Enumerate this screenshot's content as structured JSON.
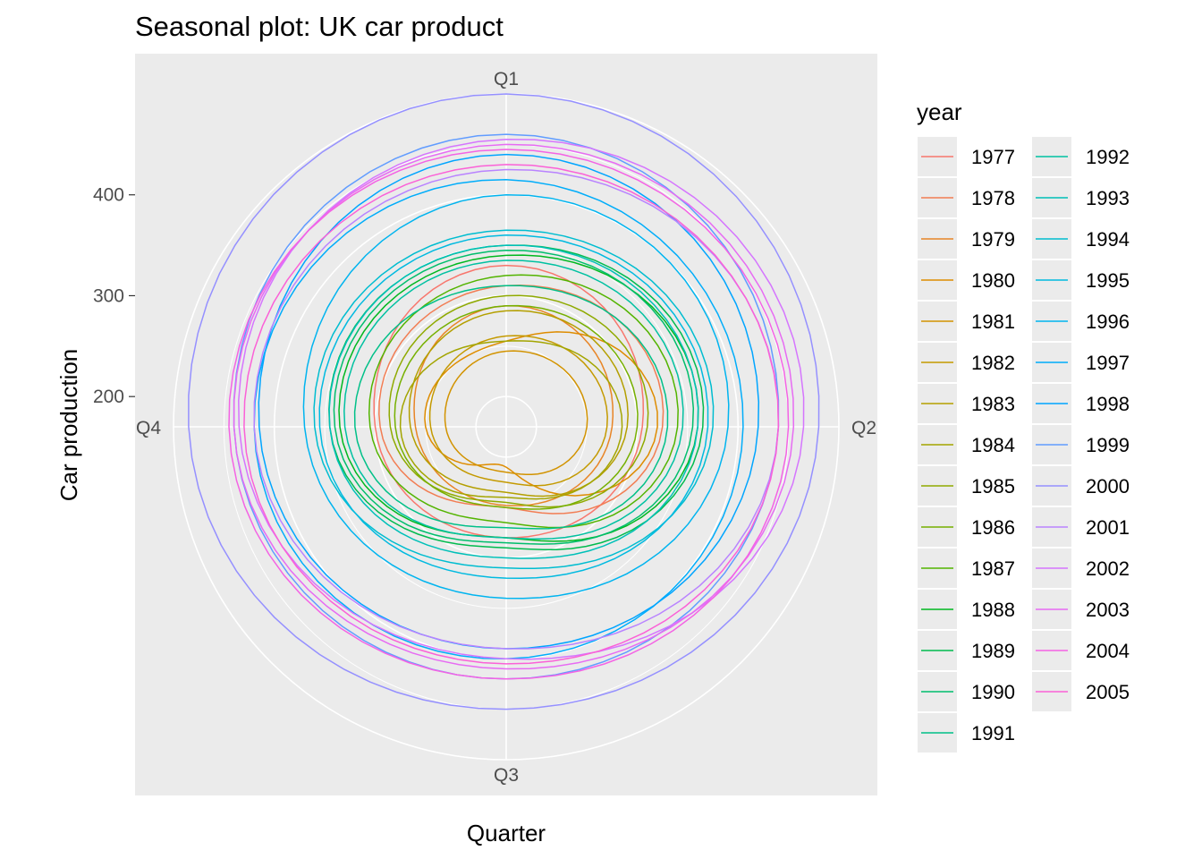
{
  "chart_data": {
    "type": "line",
    "coordinate_system": "polar",
    "title": "Seasonal plot: UK car product",
    "xlabel": "Quarter",
    "ylabel": "Car production",
    "categories": [
      "Q1",
      "Q2",
      "Q3",
      "Q4"
    ],
    "y_ticks": [
      200,
      300,
      400
    ],
    "ylim": [
      170,
      500
    ],
    "grid": true,
    "legend": {
      "title": "year",
      "position": "right",
      "columns": 2
    },
    "colors": {
      "panel_background": "#ebebeb",
      "grid": "#ffffff",
      "series_palette": [
        "#F8766D",
        "#F27D53",
        "#E88526",
        "#DE8C00",
        "#D29300",
        "#C49A00",
        "#B49F00",
        "#A3A500",
        "#8FAA00",
        "#76B000",
        "#53B400",
        "#00B81F",
        "#00BB4E",
        "#00BE6C",
        "#00C088",
        "#00C1A1",
        "#00C0B8",
        "#00BDD0",
        "#00BAE0",
        "#00B4EF",
        "#00ADFA",
        "#00A5FF",
        "#619CFF",
        "#9590FF",
        "#B983FF",
        "#D575FE",
        "#E76BF3",
        "#F463E4",
        "#FB61D7",
        "#FF63C3"
      ]
    },
    "series": [
      {
        "name": "1977",
        "values": [
          330,
          305,
          280,
          300
        ]
      },
      {
        "name": "1978",
        "values": [
          310,
          325,
          250,
          295
        ]
      },
      {
        "name": "1979",
        "values": [
          290,
          275,
          248,
          260
        ]
      },
      {
        "name": "1980",
        "values": [
          255,
          320,
          210,
          250
        ]
      },
      {
        "name": "1981",
        "values": [
          245,
          250,
          215,
          230
        ]
      },
      {
        "name": "1982",
        "values": [
          260,
          270,
          225,
          245
        ]
      },
      {
        "name": "1983",
        "values": [
          285,
          290,
          235,
          265
        ]
      },
      {
        "name": "1984",
        "values": [
          255,
          285,
          240,
          275
        ]
      },
      {
        "name": "1985",
        "values": [
          300,
          310,
          245,
          285
        ]
      },
      {
        "name": "1986",
        "values": [
          290,
          300,
          250,
          280
        ]
      },
      {
        "name": "1987",
        "values": [
          320,
          340,
          265,
          305
        ]
      },
      {
        "name": "1988",
        "values": [
          340,
          360,
          280,
          335
        ]
      },
      {
        "name": "1989",
        "values": [
          350,
          365,
          290,
          345
        ]
      },
      {
        "name": "1990",
        "values": [
          345,
          355,
          285,
          340
        ]
      },
      {
        "name": "1991",
        "values": [
          310,
          330,
          270,
          320
        ]
      },
      {
        "name": "1992",
        "values": [
          335,
          345,
          280,
          330
        ]
      },
      {
        "name": "1993",
        "values": [
          350,
          360,
          300,
          345
        ]
      },
      {
        "name": "1994",
        "values": [
          365,
          375,
          310,
          360
        ]
      },
      {
        "name": "1995",
        "values": [
          360,
          370,
          320,
          355
        ]
      },
      {
        "name": "1996",
        "values": [
          400,
          390,
          340,
          370
        ]
      },
      {
        "name": "1997",
        "values": [
          415,
          405,
          400,
          420
        ]
      },
      {
        "name": "1998",
        "values": [
          440,
          420,
          390,
          415
        ]
      },
      {
        "name": "1999",
        "values": [
          460,
          440,
          420,
          440
        ]
      },
      {
        "name": "2000",
        "values": [
          500,
          480,
          450,
          485
        ]
      },
      {
        "name": "2001",
        "values": [
          425,
          440,
          390,
          420
        ]
      },
      {
        "name": "2002",
        "values": [
          455,
          465,
          400,
          435
        ]
      },
      {
        "name": "2003",
        "values": [
          450,
          455,
          410,
          440
        ]
      },
      {
        "name": "2004",
        "values": [
          445,
          450,
          420,
          445
        ]
      },
      {
        "name": "2005",
        "values": [
          430,
          440,
          405,
          430
        ]
      }
    ]
  }
}
